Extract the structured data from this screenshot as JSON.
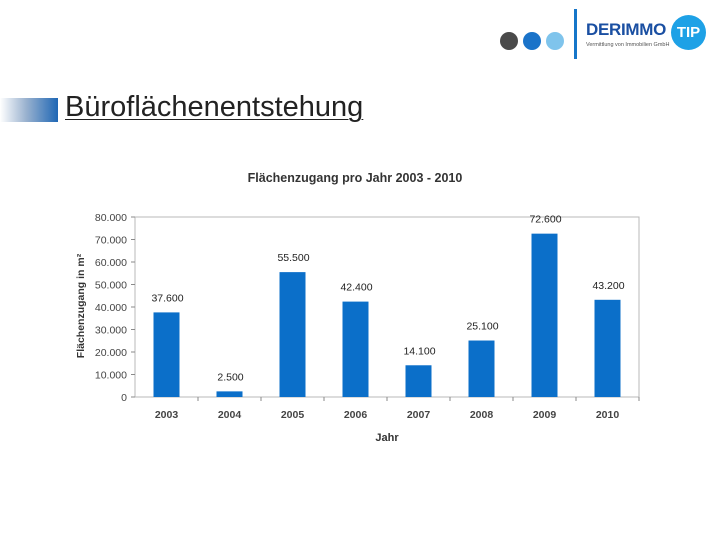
{
  "header": {
    "logo_text": "DERIMMO",
    "logo_badge": "TIP",
    "logo_subtitle": "Vermittlung von Immobilien GmbH",
    "logo_dot_colors": [
      "#4a4a4a",
      "#1a73c9",
      "#7fc4ec"
    ]
  },
  "slide": {
    "title": "Büroflächenentstehung"
  },
  "colors": {
    "bar": "#0b6fc9",
    "accent": "#1a4fa2"
  },
  "chart_data": {
    "type": "bar",
    "title": "Flächenzugang pro Jahr 2003 - 2010",
    "xlabel": "Jahr",
    "ylabel": "Flächenzugang in m²",
    "categories": [
      "2003",
      "2004",
      "2005",
      "2006",
      "2007",
      "2008",
      "2009",
      "2010"
    ],
    "values": [
      37600,
      2500,
      55500,
      42400,
      14100,
      25100,
      72600,
      43200
    ],
    "value_labels": [
      "37.600",
      "2.500",
      "55.500",
      "42.400",
      "14.100",
      "25.100",
      "72.600",
      "43.200"
    ],
    "yticks": [
      0,
      10000,
      20000,
      30000,
      40000,
      50000,
      60000,
      70000,
      80000
    ],
    "ytick_labels": [
      "0",
      "10.000",
      "20.000",
      "30.000",
      "40.000",
      "50.000",
      "60.000",
      "70.000",
      "80.000"
    ],
    "ylim": [
      0,
      80000
    ],
    "grid": false,
    "legend": "none"
  }
}
